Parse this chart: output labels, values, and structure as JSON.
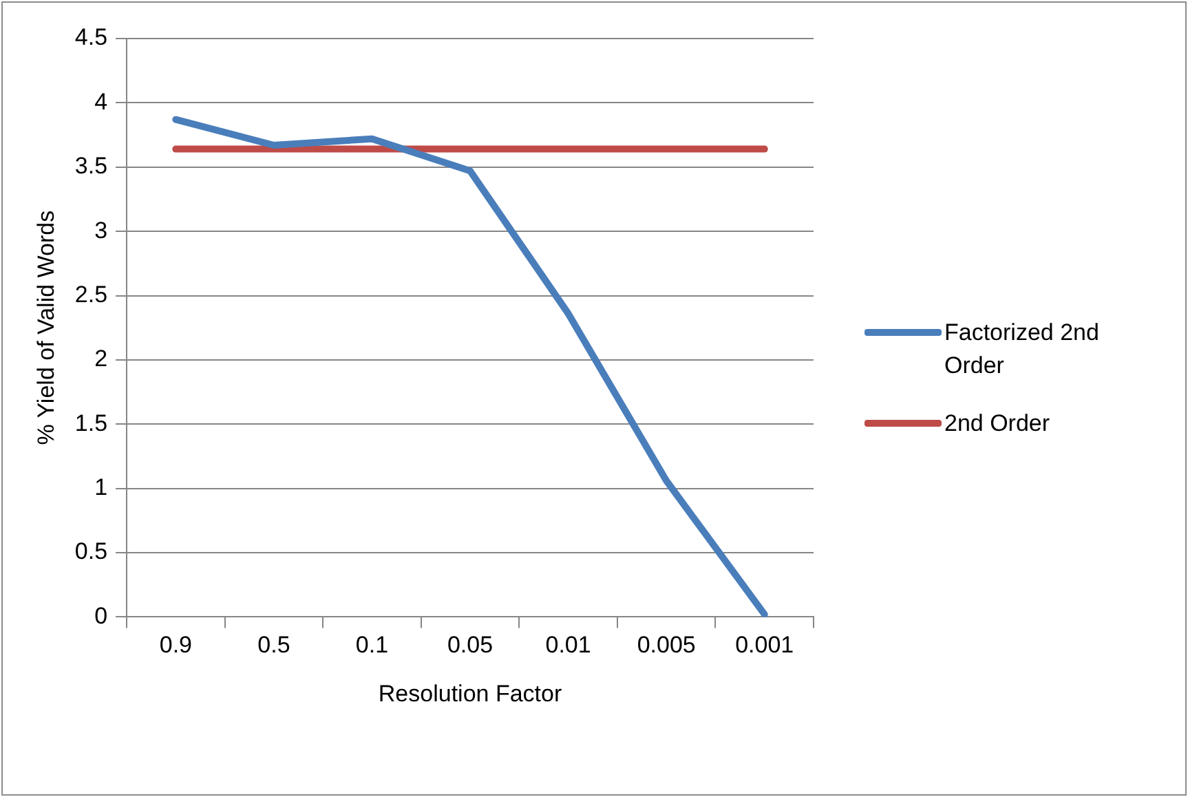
{
  "chart_data": {
    "type": "line",
    "xlabel": "Resolution Factor",
    "ylabel": "% Yield of Valid Words",
    "categories": [
      "0.9",
      "0.5",
      "0.1",
      "0.05",
      "0.01",
      "0.005",
      "0.001"
    ],
    "series": [
      {
        "name": "Factorized 2nd Order",
        "color": "#4a7ebb",
        "values": [
          3.87,
          3.67,
          3.72,
          3.47,
          2.36,
          1.06,
          0.02
        ]
      },
      {
        "name": "2nd Order",
        "color": "#be4b48",
        "values": [
          3.64,
          3.64,
          3.64,
          3.64,
          3.64,
          3.64,
          3.64
        ]
      }
    ],
    "ylim": [
      0,
      4.5
    ],
    "yticks": [
      0,
      0.5,
      1,
      1.5,
      2,
      2.5,
      3,
      3.5,
      4,
      4.5
    ],
    "grid": "y",
    "legend": "right",
    "marker": "none"
  }
}
